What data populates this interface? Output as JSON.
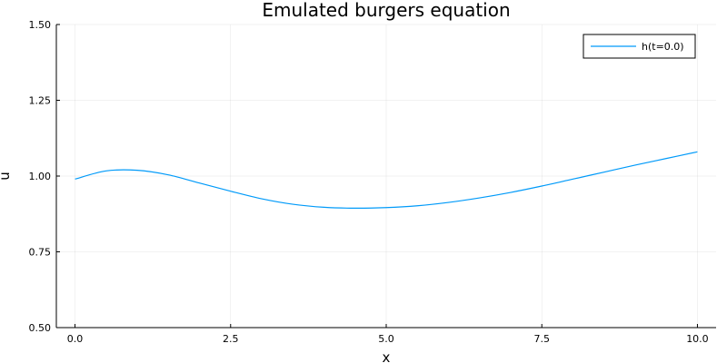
{
  "chart_data": {
    "type": "line",
    "title": "Emulated burgers equation",
    "xlabel": "x",
    "ylabel": "u",
    "xlim": [
      -0.3,
      10.3
    ],
    "ylim": [
      0.5,
      1.5
    ],
    "xticks": [
      0,
      2.5,
      5,
      7.5,
      10
    ],
    "xtick_labels": [
      "0.0",
      "2.5",
      "5.0",
      "7.5",
      "10.0"
    ],
    "yticks": [
      0.5,
      0.75,
      1.0,
      1.25,
      1.5
    ],
    "ytick_labels": [
      "0.50",
      "0.75",
      "1.00",
      "1.25",
      "1.50"
    ],
    "grid": true,
    "legend_position": "top-right",
    "series": [
      {
        "name": "h(t=0.0)",
        "color": "#009af9",
        "x": [
          0.0,
          0.5,
          1.0,
          1.5,
          2.0,
          2.5,
          3.0,
          3.5,
          4.0,
          4.5,
          5.0,
          5.5,
          6.0,
          6.5,
          7.0,
          7.5,
          8.0,
          8.5,
          9.0,
          9.5,
          10.0
        ],
        "y": [
          0.99,
          1.017,
          1.019,
          1.004,
          0.977,
          0.95,
          0.925,
          0.907,
          0.897,
          0.894,
          0.896,
          0.902,
          0.913,
          0.928,
          0.946,
          0.967,
          0.99,
          1.013,
          1.036,
          1.058,
          1.08
        ]
      }
    ]
  }
}
